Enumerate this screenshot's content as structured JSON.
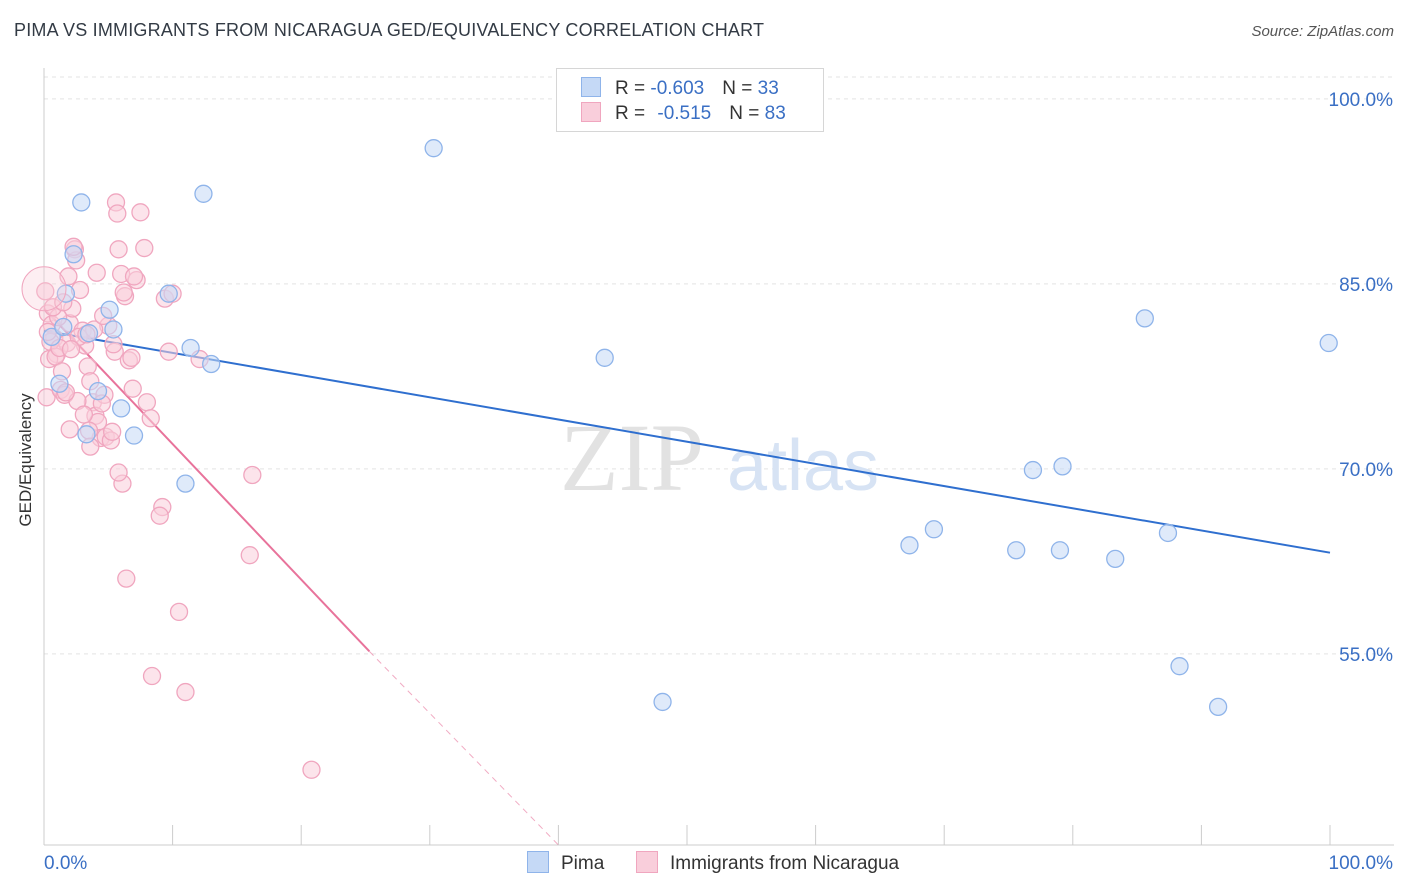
{
  "header": {
    "title": "PIMA VS IMMIGRANTS FROM NICARAGUA GED/EQUIVALENCY CORRELATION CHART",
    "source": "Source: ZipAtlas.com"
  },
  "legend": {
    "rows": [
      {
        "r_label": "R = ",
        "r_value": "-0.603",
        "n_label": "N = ",
        "n_value": "33"
      },
      {
        "r_label": "R = ",
        "r_value": "-0.515",
        "n_label": "N = ",
        "n_value": "83"
      }
    ]
  },
  "watermark": {
    "zip": "ZIP",
    "atlas": "atlas"
  },
  "chart_data": {
    "type": "scatter",
    "title": "PIMA VS IMMIGRANTS FROM NICARAGUA GED/EQUIVALENCY CORRELATION CHART",
    "xlabel": "",
    "ylabel": "GED/Equivalency",
    "xlim": [
      0,
      100
    ],
    "ylim": [
      39.5,
      102.5
    ],
    "x_tick_labels": [
      "0.0%",
      "100.0%"
    ],
    "y_ticks": [
      55,
      70,
      85,
      100
    ],
    "y_tick_labels": [
      "55.0%",
      "70.0%",
      "85.0%",
      "100.0%"
    ],
    "grid": true,
    "legend_position": "top-center",
    "series": [
      {
        "name": "Pima",
        "color": "#8fb4ea",
        "fill": "#c5d9f6",
        "trend_color": "#2f6fcf",
        "trend": {
          "x0": 0,
          "y0": 81.2,
          "x1": 100,
          "y1": 63.2
        },
        "points": [
          [
            2.9,
            91.6
          ],
          [
            12.4,
            92.3
          ],
          [
            30.3,
            96.0
          ],
          [
            2.3,
            87.4
          ],
          [
            1.7,
            84.2
          ],
          [
            5.1,
            82.9
          ],
          [
            5.4,
            81.3
          ],
          [
            3.5,
            81.0
          ],
          [
            0.6,
            80.7
          ],
          [
            11.4,
            79.8
          ],
          [
            13.0,
            78.5
          ],
          [
            1.2,
            76.9
          ],
          [
            4.2,
            76.3
          ],
          [
            6.0,
            74.9
          ],
          [
            7.0,
            72.7
          ],
          [
            3.3,
            72.8
          ],
          [
            9.7,
            84.2
          ],
          [
            11.0,
            68.8
          ],
          [
            43.6,
            79.0
          ],
          [
            85.6,
            82.2
          ],
          [
            99.9,
            80.2
          ],
          [
            76.9,
            69.9
          ],
          [
            79.2,
            70.2
          ],
          [
            69.2,
            65.1
          ],
          [
            67.3,
            63.8
          ],
          [
            75.6,
            63.4
          ],
          [
            79.0,
            63.4
          ],
          [
            83.3,
            62.7
          ],
          [
            87.4,
            64.8
          ],
          [
            88.3,
            54.0
          ],
          [
            48.1,
            51.1
          ],
          [
            91.3,
            50.7
          ],
          [
            1.5,
            81.5
          ]
        ]
      },
      {
        "name": "Immigrants from Nicaragua",
        "color": "#f0a6bf",
        "fill": "#f9cedb",
        "trend_color": "#e8739b",
        "trend": {
          "x0": 0,
          "y0": 83.0,
          "x1": 25.3,
          "y1": 55.2
        },
        "trend_ext": {
          "x0": 25.3,
          "y0": 55.2,
          "x1": 40.0,
          "y1": 39.5
        },
        "points": [
          [
            0.1,
            84.4
          ],
          [
            0.3,
            82.6
          ],
          [
            0.6,
            81.7
          ],
          [
            0.8,
            80.6
          ],
          [
            1.0,
            79.3
          ],
          [
            0.4,
            78.9
          ],
          [
            0.2,
            75.8
          ],
          [
            1.3,
            76.4
          ],
          [
            1.6,
            76.0
          ],
          [
            1.8,
            80.2
          ],
          [
            2.0,
            81.8
          ],
          [
            2.2,
            83.0
          ],
          [
            2.4,
            87.8
          ],
          [
            2.5,
            86.9
          ],
          [
            2.8,
            84.5
          ],
          [
            3.0,
            81.2
          ],
          [
            3.2,
            80.0
          ],
          [
            3.4,
            78.3
          ],
          [
            3.6,
            77.1
          ],
          [
            3.8,
            75.4
          ],
          [
            4.0,
            74.3
          ],
          [
            4.2,
            73.8
          ],
          [
            4.4,
            72.5
          ],
          [
            4.7,
            76.0
          ],
          [
            5.0,
            81.6
          ],
          [
            5.5,
            79.5
          ],
          [
            5.8,
            87.8
          ],
          [
            6.0,
            85.8
          ],
          [
            6.3,
            84.0
          ],
          [
            6.6,
            78.8
          ],
          [
            6.9,
            76.5
          ],
          [
            7.2,
            85.3
          ],
          [
            7.5,
            90.8
          ],
          [
            7.8,
            87.9
          ],
          [
            8.0,
            75.4
          ],
          [
            8.3,
            74.1
          ],
          [
            9.2,
            66.9
          ],
          [
            9.0,
            66.2
          ],
          [
            9.4,
            83.8
          ],
          [
            9.7,
            79.5
          ],
          [
            10.0,
            84.2
          ],
          [
            10.5,
            58.4
          ],
          [
            8.4,
            53.2
          ],
          [
            11.0,
            51.9
          ],
          [
            12.1,
            78.9
          ],
          [
            6.4,
            61.1
          ],
          [
            6.1,
            68.8
          ],
          [
            5.8,
            69.7
          ],
          [
            16.2,
            69.5
          ],
          [
            16.0,
            63.0
          ],
          [
            20.8,
            45.6
          ],
          [
            5.6,
            91.6
          ],
          [
            5.7,
            90.7
          ],
          [
            1.9,
            85.6
          ],
          [
            2.3,
            88.0
          ],
          [
            1.1,
            82.3
          ],
          [
            0.5,
            80.3
          ],
          [
            0.9,
            79.1
          ],
          [
            1.4,
            77.9
          ],
          [
            2.6,
            75.5
          ],
          [
            3.1,
            74.4
          ],
          [
            3.5,
            73.1
          ],
          [
            4.8,
            72.6
          ],
          [
            5.2,
            72.3
          ],
          [
            2.0,
            73.2
          ],
          [
            3.6,
            71.8
          ],
          [
            4.5,
            75.3
          ],
          [
            5.3,
            73.0
          ],
          [
            6.8,
            79.0
          ],
          [
            7.0,
            85.6
          ],
          [
            0.7,
            83.1
          ],
          [
            1.2,
            79.8
          ],
          [
            2.7,
            80.7
          ],
          [
            3.9,
            81.3
          ],
          [
            4.6,
            82.4
          ],
          [
            5.4,
            80.1
          ],
          [
            6.2,
            84.3
          ],
          [
            1.5,
            83.5
          ],
          [
            0.3,
            81.1
          ],
          [
            2.1,
            79.7
          ],
          [
            3.3,
            80.9
          ],
          [
            4.1,
            85.9
          ],
          [
            1.7,
            76.2
          ]
        ]
      }
    ]
  }
}
